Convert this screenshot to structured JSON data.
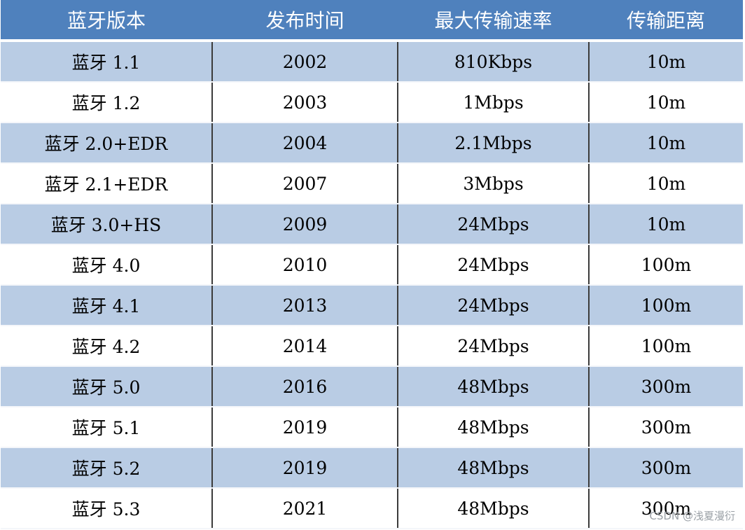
{
  "table": {
    "headers": [
      "蓝牙版本",
      "发布时间",
      "最大传输速率",
      "传输距离"
    ],
    "rows": [
      [
        "蓝牙 1.1",
        "2002",
        "810Kbps",
        "10m"
      ],
      [
        "蓝牙 1.2",
        "2003",
        "1Mbps",
        "10m"
      ],
      [
        "蓝牙 2.0+EDR",
        "2004",
        "2.1Mbps",
        "10m"
      ],
      [
        "蓝牙 2.1+EDR",
        "2007",
        "3Mbps",
        "10m"
      ],
      [
        "蓝牙 3.0+HS",
        "2009",
        "24Mbps",
        "10m"
      ],
      [
        "蓝牙 4.0",
        "2010",
        "24Mbps",
        "100m"
      ],
      [
        "蓝牙 4.1",
        "2013",
        "24Mbps",
        "100m"
      ],
      [
        "蓝牙 4.2",
        "2014",
        "24Mbps",
        "100m"
      ],
      [
        "蓝牙 5.0",
        "2016",
        "48Mbps",
        "300m"
      ],
      [
        "蓝牙 5.1",
        "2019",
        "48Mbps",
        "300m"
      ],
      [
        "蓝牙 5.2",
        "2019",
        "48Mbps",
        "300m"
      ],
      [
        "蓝牙 5.3",
        "2021",
        "48Mbps",
        "300m"
      ]
    ]
  },
  "watermark": "CSDN @浅夏漫衍"
}
